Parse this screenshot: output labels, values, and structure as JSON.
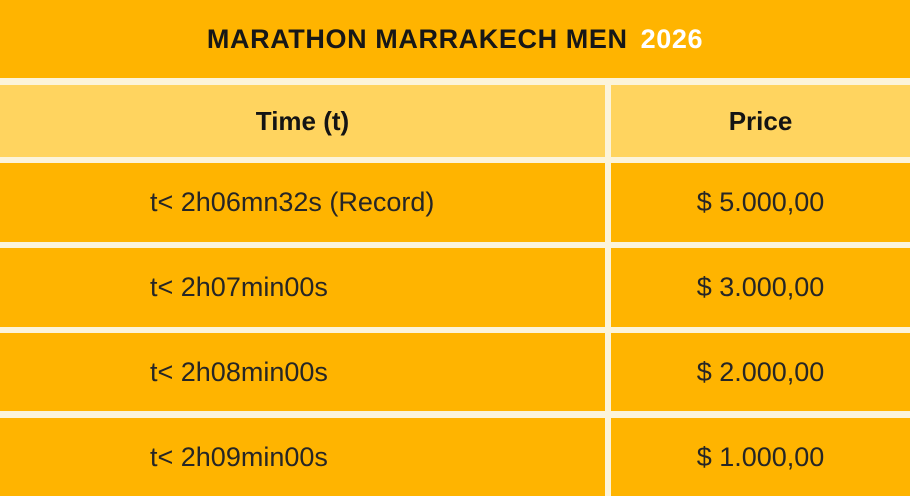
{
  "title": {
    "main": "MARATHON MARRAKECH MEN",
    "year": "2026"
  },
  "table": {
    "columns": {
      "time": "Time (t)",
      "price": "Price"
    },
    "rows": [
      {
        "time": "t< 2h06mn32s (Record)",
        "price": "$ 5.000,00"
      },
      {
        "time": "t< 2h07min00s",
        "price": "$ 3.000,00"
      },
      {
        "time": "t< 2h08min00s",
        "price": "$ 2.000,00"
      },
      {
        "time": "t< 2h09min00s",
        "price": "$ 1.000,00"
      }
    ]
  },
  "colors": {
    "band_orange": "#FFB400",
    "header_yellow": "#FFD45F",
    "divider_cream": "#FCF4DA",
    "title_text": "#171717",
    "year_text": "#FFFFFF",
    "body_text": "#262626"
  },
  "chart_data": {
    "type": "table",
    "title": "MARATHON MARRAKECH MEN 2026",
    "columns": [
      "Time (t)",
      "Price"
    ],
    "rows": [
      [
        "t< 2h06mn32s (Record)",
        "$ 5.000,00"
      ],
      [
        "t< 2h07min00s",
        "$ 3.000,00"
      ],
      [
        "t< 2h08min00s",
        "$ 2.000,00"
      ],
      [
        "t< 2h09min00s",
        "$ 1.000,00"
      ]
    ],
    "values_usd": [
      5000,
      3000,
      2000,
      1000
    ],
    "layout": "two-column prize table, header row lighter yellow, cream grid lines on amber background"
  }
}
